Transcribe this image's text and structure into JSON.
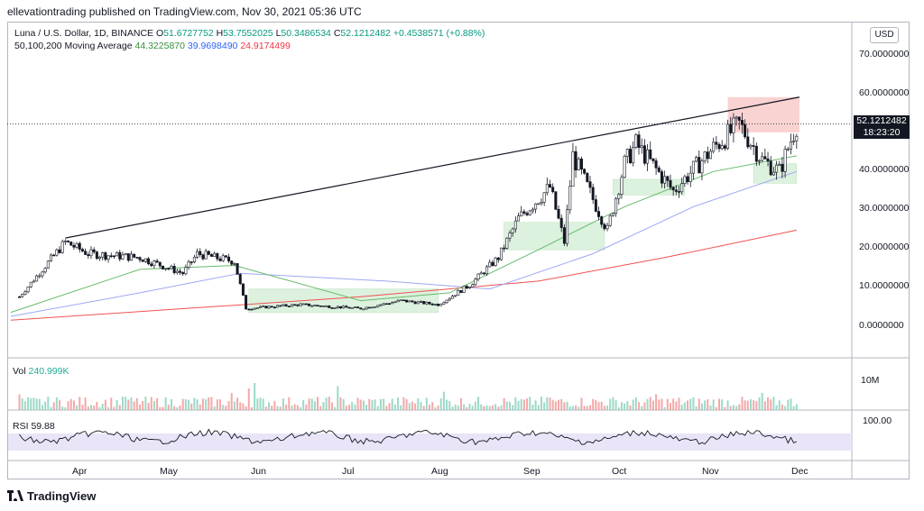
{
  "header": "ellevationtrading published on TradingView.com, Nov 30, 2021 05:36 UTC",
  "legend": {
    "symbol": "Luna / U.S. Dollar, 1D, BINANCE",
    "o_label": "O",
    "o": "51.6727752",
    "h_label": "H",
    "h": "53.7552025",
    "l_label": "L",
    "l": "50.3486534",
    "c_label": "C",
    "c": "52.1212482",
    "change": "+0.4538571 (+0.88%)",
    "ma_label": "50,100,200 Moving Average",
    "ma50": "44.3225870",
    "ma100": "39.9698490",
    "ma200": "24.9174499"
  },
  "currency": "USD",
  "price_tag": {
    "price": "52.1212482",
    "countdown": "18:23:20"
  },
  "volume": {
    "label": "Vol",
    "value": "240.999K",
    "axis": "10M"
  },
  "rsi": {
    "label": "RSI",
    "value": "59.88",
    "axis": "100.00"
  },
  "footer": "TradingView",
  "colors": {
    "up": "#ffffff",
    "down": "#131722",
    "ma50": "#66bb6a",
    "ma100": "#9fa8f5",
    "ma200": "#ef5350",
    "rsi_band": "#e9e4f7"
  },
  "chart_data": {
    "type": "candlestick",
    "ylim": [
      0,
      70
    ],
    "y_ticks": [
      "70.0000000",
      "60.0000000",
      "50.0000000",
      "40.0000000",
      "30.0000000",
      "20.0000000",
      "10.0000000",
      "0.0000000"
    ],
    "y_tick_values": [
      70,
      60,
      50,
      40,
      30,
      20,
      10,
      0
    ],
    "x_labels": [
      "Apr",
      "May",
      "Jun",
      "Jul",
      "Aug",
      "Sep",
      "Oct",
      "Nov",
      "Dec"
    ],
    "close_keypoints": [
      {
        "x": "Mar 04",
        "y": 8
      },
      {
        "x": "Mar 20",
        "y": 22
      },
      {
        "x": "Mar 28",
        "y": 19
      },
      {
        "x": "Apr 15",
        "y": 18
      },
      {
        "x": "Apr 30",
        "y": 14
      },
      {
        "x": "May 05",
        "y": 19
      },
      {
        "x": "May 18",
        "y": 17
      },
      {
        "x": "May 22",
        "y": 5
      },
      {
        "x": "Jun 10",
        "y": 6
      },
      {
        "x": "Jul 01",
        "y": 5
      },
      {
        "x": "Jul 15",
        "y": 7
      },
      {
        "x": "Jul 28",
        "y": 6
      },
      {
        "x": "Aug 08",
        "y": 11
      },
      {
        "x": "Aug 18",
        "y": 18
      },
      {
        "x": "Aug 25",
        "y": 28
      },
      {
        "x": "Sep 05",
        "y": 36
      },
      {
        "x": "Sep 10",
        "y": 22
      },
      {
        "x": "Sep 13",
        "y": 44
      },
      {
        "x": "Sep 25",
        "y": 25
      },
      {
        "x": "Oct 01",
        "y": 42
      },
      {
        "x": "Oct 05",
        "y": 47
      },
      {
        "x": "Oct 18",
        "y": 35
      },
      {
        "x": "Nov 01",
        "y": 46
      },
      {
        "x": "Nov 10",
        "y": 52
      },
      {
        "x": "Nov 18",
        "y": 43
      },
      {
        "x": "Nov 24",
        "y": 40
      },
      {
        "x": "Nov 30",
        "y": 52
      }
    ],
    "ma50_keypoints": [
      {
        "x": "Mar 01",
        "y": 4
      },
      {
        "x": "Apr 15",
        "y": 15
      },
      {
        "x": "May 18",
        "y": 16
      },
      {
        "x": "Jul 01",
        "y": 7
      },
      {
        "x": "Aug 01",
        "y": 9
      },
      {
        "x": "Sep 01",
        "y": 20
      },
      {
        "x": "Oct 01",
        "y": 31
      },
      {
        "x": "Nov 01",
        "y": 40
      },
      {
        "x": "Nov 30",
        "y": 44
      }
    ],
    "ma100_keypoints": [
      {
        "x": "Mar 01",
        "y": 3
      },
      {
        "x": "Apr 15",
        "y": 9
      },
      {
        "x": "May 20",
        "y": 14
      },
      {
        "x": "Jul 10",
        "y": 12
      },
      {
        "x": "Aug 15",
        "y": 10
      },
      {
        "x": "Sep 20",
        "y": 19
      },
      {
        "x": "Oct 25",
        "y": 31
      },
      {
        "x": "Nov 30",
        "y": 40
      }
    ],
    "ma200_keypoints": [
      {
        "x": "Mar 01",
        "y": 2
      },
      {
        "x": "May 01",
        "y": 5
      },
      {
        "x": "Jul 01",
        "y": 8
      },
      {
        "x": "Sep 01",
        "y": 12
      },
      {
        "x": "Oct 15",
        "y": 18
      },
      {
        "x": "Nov 30",
        "y": 25
      }
    ],
    "trendline": [
      {
        "x": "Mar 20",
        "y": 23
      },
      {
        "x": "Dec 01",
        "y": 59
      }
    ],
    "resistance_zone": {
      "x0": "Nov 06",
      "x1": "Dec 01",
      "y0": 50,
      "y1": 59
    },
    "support_zones": [
      {
        "x0": "May 23",
        "x1": "Jul 28",
        "y0": 4,
        "y1": 10
      },
      {
        "x0": "Aug 20",
        "x1": "Sep 24",
        "y0": 20,
        "y1": 27
      },
      {
        "x0": "Sep 27",
        "x1": "Oct 22",
        "y0": 34,
        "y1": 38
      },
      {
        "x0": "Nov 15",
        "x1": "Nov 30",
        "y0": 37,
        "y1": 42
      }
    ],
    "current_price": 52.12
  }
}
